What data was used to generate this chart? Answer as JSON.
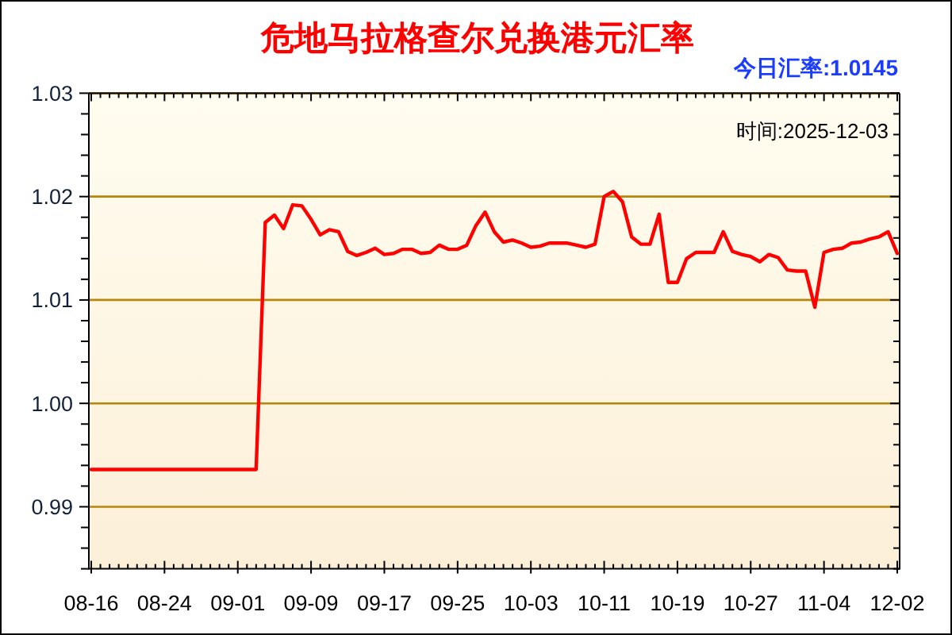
{
  "chart_data": {
    "type": "line",
    "title": "危地马拉格查尔兑换港元汇率",
    "annotations": [
      "今日汇率:1.0145",
      "时间:2025-12-03"
    ],
    "categories": [
      "08-16",
      null,
      null,
      null,
      null,
      null,
      null,
      null,
      "08-24",
      null,
      null,
      null,
      null,
      null,
      null,
      null,
      "09-01",
      null,
      null,
      null,
      null,
      null,
      null,
      null,
      "09-09",
      null,
      null,
      null,
      null,
      null,
      null,
      null,
      "09-17",
      null,
      null,
      null,
      null,
      null,
      null,
      null,
      "09-25",
      null,
      null,
      null,
      null,
      null,
      null,
      null,
      "10-03",
      null,
      null,
      null,
      null,
      null,
      null,
      null,
      "10-11",
      null,
      null,
      null,
      null,
      null,
      null,
      null,
      "10-19",
      null,
      null,
      null,
      null,
      null,
      null,
      null,
      "10-27",
      null,
      null,
      null,
      null,
      null,
      null,
      null,
      "11-04",
      null,
      null,
      null,
      null,
      null,
      null,
      null,
      "12-02"
    ],
    "values": [
      0.9936,
      0.9936,
      0.9936,
      0.9936,
      0.9936,
      0.9936,
      0.9936,
      0.9936,
      0.9936,
      0.9936,
      0.9936,
      0.9936,
      0.9936,
      0.9936,
      0.9936,
      0.9936,
      0.9936,
      0.9936,
      0.9936,
      1.0175,
      1.0182,
      1.0169,
      1.0192,
      1.0191,
      1.0178,
      1.0163,
      1.0168,
      1.0166,
      1.0147,
      1.0143,
      1.0146,
      1.015,
      1.0144,
      1.0145,
      1.0149,
      1.0149,
      1.0145,
      1.0146,
      1.0153,
      1.0149,
      1.0149,
      1.0153,
      1.0172,
      1.0185,
      1.0166,
      1.0156,
      1.0158,
      1.0155,
      1.0151,
      1.0152,
      1.0155,
      1.0155,
      1.0155,
      1.0153,
      1.0151,
      1.0154,
      1.02,
      1.0205,
      1.0195,
      1.0161,
      1.0154,
      1.0154,
      1.0183,
      1.0117,
      1.0117,
      1.014,
      1.0146,
      1.0146,
      1.0146,
      1.0166,
      1.0147,
      1.0144,
      1.0142,
      1.0137,
      1.0144,
      1.0141,
      1.0129,
      1.0128,
      1.0128,
      1.0093,
      1.0146,
      1.0149,
      1.015,
      1.0155,
      1.0156,
      1.0159,
      1.0161,
      1.0166,
      1.0145
    ],
    "color": "#ff0000",
    "line_style": "solid",
    "ylim": [
      0.984,
      1.03
    ],
    "yticks": [
      {
        "value": 0.984,
        "label": null
      },
      {
        "value": 0.986,
        "label": null
      },
      {
        "value": 0.988,
        "label": null
      },
      0.99,
      {
        "value": 0.992,
        "label": null
      },
      {
        "value": 0.994,
        "label": null
      },
      {
        "value": 0.996,
        "label": null
      },
      {
        "value": 0.998,
        "label": null
      },
      {
        "value": 1.0,
        "label": "1.00"
      },
      {
        "value": 1.002,
        "label": null
      },
      {
        "value": 1.004,
        "label": null
      },
      {
        "value": 1.006,
        "label": null
      },
      {
        "value": 1.008,
        "label": null
      },
      1.01,
      {
        "value": 1.012,
        "label": null
      },
      {
        "value": 1.014,
        "label": null
      },
      {
        "value": 1.016,
        "label": null
      },
      {
        "value": 1.018,
        "label": null
      },
      1.02,
      {
        "value": 1.022,
        "label": null
      },
      {
        "value": 1.024,
        "label": null
      },
      {
        "value": 1.026,
        "label": null
      },
      {
        "value": 1.028,
        "label": null
      },
      1.03
    ],
    "grid": "y"
  }
}
